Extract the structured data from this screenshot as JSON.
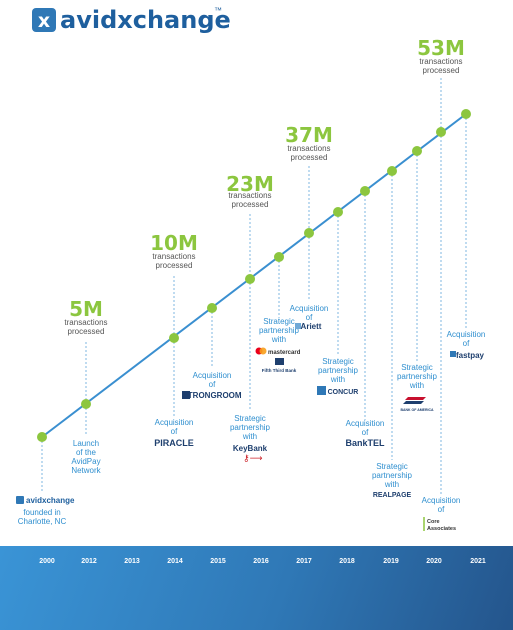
{
  "logo": {
    "text": "avidxchange",
    "tm": "™"
  },
  "colors": {
    "brand_blue": "#2f8fcf",
    "brand_green": "#8cc63f",
    "navy": "#1e3f6e",
    "line": "#3a8fd0"
  },
  "milestones": [
    {
      "value": "5M",
      "caption": [
        "transactions",
        "processed"
      ]
    },
    {
      "value": "10M",
      "caption": [
        "transactions",
        "processed"
      ]
    },
    {
      "value": "23M",
      "caption": [
        "transactions",
        "processed"
      ]
    },
    {
      "value": "37M",
      "caption": [
        "transactions",
        "processed"
      ]
    },
    {
      "value": "53M",
      "caption": [
        "transactions",
        "processed"
      ]
    }
  ],
  "events": [
    {
      "lines": [
        "founded in",
        "Charlotte, NC"
      ],
      "logo": "avidxchange"
    },
    {
      "lines": [
        "Launch",
        "of the",
        "AvidPay",
        "Network"
      ]
    },
    {
      "lines": [
        "Acquisition",
        "of"
      ],
      "logo": "PIRACLE"
    },
    {
      "lines": [
        "Acquisition",
        "of"
      ],
      "logo": "STRONGROOM"
    },
    {
      "lines": [
        "Strategic",
        "partnership",
        "with"
      ],
      "logo": "KeyBank"
    },
    {
      "lines": [
        "Strategic",
        "partnership",
        "with"
      ],
      "logo": "mastercard",
      "logo2": "Fifth Third Bank"
    },
    {
      "lines": [
        "Acquisition",
        "of"
      ],
      "logo": "Ariett"
    },
    {
      "lines": [
        "Strategic",
        "partnership",
        "with"
      ],
      "logo": "CONCUR"
    },
    {
      "lines": [
        "Acquisition",
        "of"
      ],
      "logo": "BankTEL"
    },
    {
      "lines": [
        "Strategic",
        "partnership",
        "with"
      ],
      "logo": "REALPAGE"
    },
    {
      "lines": [
        "Strategic",
        "partnership",
        "with"
      ],
      "logo": "BANK OF AMERICA"
    },
    {
      "lines": [
        "Acquisition",
        "of"
      ],
      "logo": "Core",
      "logo2": "Associates"
    },
    {
      "lines": [
        "Acquisition",
        "of"
      ],
      "logo": "fastpay"
    }
  ],
  "years": [
    "2000",
    "2012",
    "2013",
    "2014",
    "2015",
    "2016",
    "2017",
    "2018",
    "2019",
    "2020",
    "2021"
  ]
}
